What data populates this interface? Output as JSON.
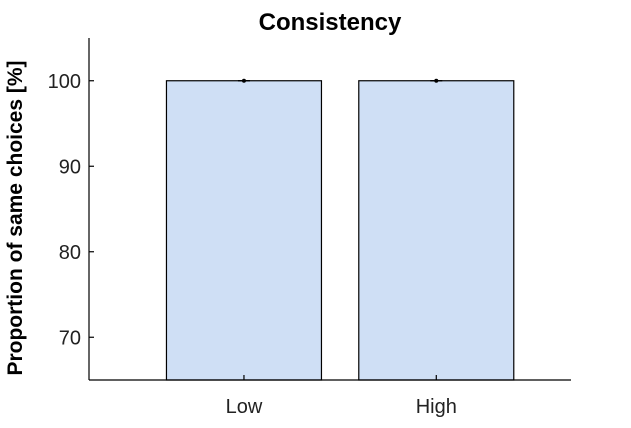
{
  "chart_data": {
    "type": "bar",
    "title": "Consistency",
    "xlabel": "",
    "ylabel": "Proportion of same choices [%]",
    "categories": [
      "Low",
      "High"
    ],
    "values": [
      100,
      100
    ],
    "errors": [
      0.1,
      0.1
    ],
    "ylim": [
      65,
      105
    ],
    "yticks": [
      70,
      80,
      90,
      100
    ],
    "ytick_labels": [
      "70",
      "80",
      "90",
      "100"
    ],
    "grid": false,
    "legend": "none",
    "colors": {
      "bar_fill": "#cfdff5",
      "bar_edge": "#000000",
      "axis": "#000000",
      "errorbar": "#000000"
    }
  }
}
